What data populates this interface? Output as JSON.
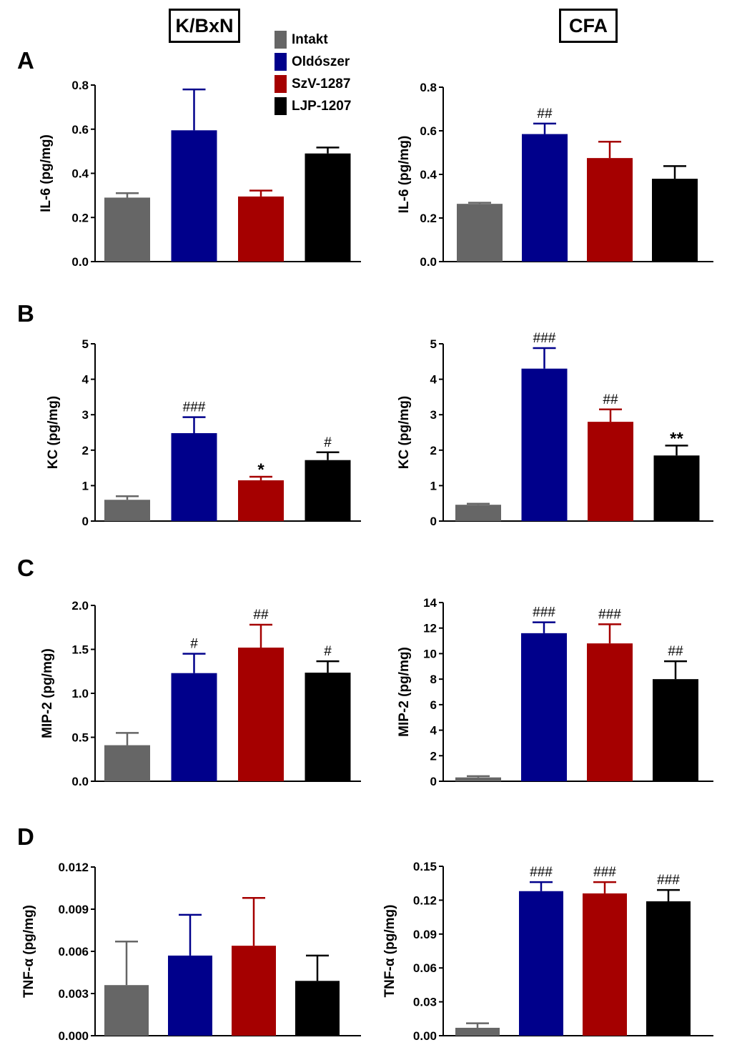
{
  "headers": {
    "left": "K/BxN",
    "right": "CFA"
  },
  "panel_labels": [
    "A",
    "B",
    "C",
    "D"
  ],
  "legend": [
    {
      "label": "Intakt",
      "color": "#666666"
    },
    {
      "label": "Oldószer",
      "color": "#00008b"
    },
    {
      "label": "SzV-1287",
      "color": "#a50000"
    },
    {
      "label": "LJP-1207",
      "color": "#000000"
    }
  ],
  "chart_data": [
    {
      "type": "bar",
      "panel": "A",
      "model": "K/BxN",
      "ylabel": "IL-6 (pg/mg)",
      "ylim": [
        0,
        0.8
      ],
      "yticks": [
        "0.0",
        "0.2",
        "0.4",
        "0.6",
        "0.8"
      ],
      "categories": [
        "Intakt",
        "Oldószer",
        "SzV-1287",
        "LJP-1207"
      ],
      "values": [
        0.29,
        0.595,
        0.295,
        0.49
      ],
      "errors": [
        0.02,
        0.185,
        0.027,
        0.027
      ],
      "annotations": [
        "",
        "",
        "",
        ""
      ]
    },
    {
      "type": "bar",
      "panel": "A",
      "model": "CFA",
      "ylabel": "IL-6 (pg/mg)",
      "ylim": [
        0,
        0.8
      ],
      "yticks": [
        "0.0",
        "0.2",
        "0.4",
        "0.6",
        "0.8"
      ],
      "categories": [
        "Intakt",
        "Oldószer",
        "SzV-1287",
        "LJP-1207"
      ],
      "values": [
        0.265,
        0.585,
        0.475,
        0.38
      ],
      "errors": [
        0.005,
        0.048,
        0.075,
        0.058
      ],
      "annotations": [
        "",
        "##",
        "",
        ""
      ]
    },
    {
      "type": "bar",
      "panel": "B",
      "model": "K/BxN",
      "ylabel": "KC (pg/mg)",
      "ylim": [
        0,
        5
      ],
      "yticks": [
        "0",
        "1",
        "2",
        "3",
        "4",
        "5"
      ],
      "categories": [
        "Intakt",
        "Oldószer",
        "SzV-1287",
        "LJP-1207"
      ],
      "values": [
        0.6,
        2.48,
        1.15,
        1.72
      ],
      "errors": [
        0.1,
        0.45,
        0.1,
        0.22
      ],
      "annotations": [
        "",
        "###",
        "*",
        "#"
      ]
    },
    {
      "type": "bar",
      "panel": "B",
      "model": "CFA",
      "ylabel": "KC (pg/mg)",
      "ylim": [
        0,
        5
      ],
      "yticks": [
        "0",
        "1",
        "2",
        "3",
        "4",
        "5"
      ],
      "categories": [
        "Intakt",
        "Oldószer",
        "SzV-1287",
        "LJP-1207"
      ],
      "values": [
        0.46,
        4.3,
        2.8,
        1.85
      ],
      "errors": [
        0.03,
        0.58,
        0.35,
        0.28
      ],
      "annotations": [
        "",
        "###",
        "##",
        "**"
      ]
    },
    {
      "type": "bar",
      "panel": "C",
      "model": "K/BxN",
      "ylabel": "MIP-2 (pg/mg)",
      "ylim": [
        0,
        2.0
      ],
      "yticks": [
        "0.0",
        "0.5",
        "1.0",
        "1.5",
        "2.0"
      ],
      "categories": [
        "Intakt",
        "Oldószer",
        "SzV-1287",
        "LJP-1207"
      ],
      "values": [
        0.41,
        1.23,
        1.52,
        1.235
      ],
      "errors": [
        0.14,
        0.22,
        0.26,
        0.13
      ],
      "annotations": [
        "",
        "#",
        "##",
        "#"
      ]
    },
    {
      "type": "bar",
      "panel": "C",
      "model": "CFA",
      "ylabel": "MIP-2 (pg/mg)",
      "ylim": [
        0,
        14
      ],
      "yticks": [
        "0",
        "2",
        "4",
        "6",
        "8",
        "10",
        "12",
        "14"
      ],
      "categories": [
        "Intakt",
        "Oldószer",
        "SzV-1287",
        "LJP-1207"
      ],
      "values": [
        0.3,
        11.6,
        10.8,
        8.0
      ],
      "errors": [
        0.1,
        0.85,
        1.5,
        1.4
      ],
      "annotations": [
        "",
        "###",
        "###",
        "##"
      ]
    },
    {
      "type": "bar",
      "panel": "D",
      "model": "K/BxN",
      "ylabel": "TNF-α (pg/mg)",
      "ylim": [
        0,
        0.012
      ],
      "yticks": [
        "0.000",
        "0.003",
        "0.006",
        "0.009",
        "0.012"
      ],
      "categories": [
        "Intakt",
        "Oldószer",
        "SzV-1287",
        "LJP-1207"
      ],
      "values": [
        0.0036,
        0.0057,
        0.0064,
        0.0039
      ],
      "errors": [
        0.0031,
        0.0029,
        0.0034,
        0.0018
      ],
      "annotations": [
        "",
        "",
        "",
        ""
      ]
    },
    {
      "type": "bar",
      "panel": "D",
      "model": "CFA",
      "ylabel": "TNF-α (pg/mg)",
      "ylim": [
        0,
        0.15
      ],
      "yticks": [
        "0.00",
        "0.03",
        "0.06",
        "0.09",
        "0.12",
        "0.15"
      ],
      "categories": [
        "Intakt",
        "Oldószer",
        "SzV-1287",
        "LJP-1207"
      ],
      "values": [
        0.007,
        0.128,
        0.126,
        0.119
      ],
      "errors": [
        0.004,
        0.008,
        0.01,
        0.01
      ],
      "annotations": [
        "",
        "###",
        "###",
        "###"
      ]
    }
  ]
}
